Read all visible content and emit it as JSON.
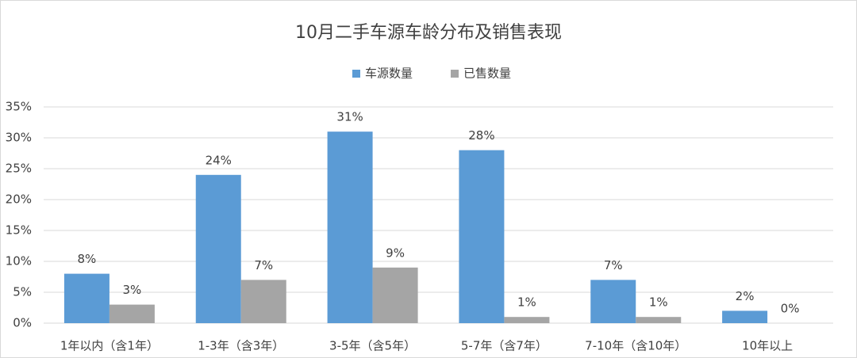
{
  "chart_data": {
    "type": "bar",
    "title": "10月二手车源车龄分布及销售表现",
    "categories": [
      "1年以内（含1年）",
      "1-3年（含3年）",
      "3-5年（含5年）",
      "5-7年（含7年）",
      "7-10年（含10年）",
      "10年以上"
    ],
    "series": [
      {
        "name": "车源数量",
        "color": "#5b9bd5",
        "values": [
          8,
          24,
          31,
          28,
          7,
          2
        ],
        "value_labels": [
          "8%",
          "24%",
          "31%",
          "28%",
          "7%",
          "2%"
        ]
      },
      {
        "name": "已售数量",
        "color": "#a5a5a5",
        "values": [
          3,
          7,
          9,
          1,
          1,
          0
        ],
        "value_labels": [
          "3%",
          "7%",
          "9%",
          "1%",
          "1%",
          "0%"
        ]
      }
    ],
    "ylim": [
      0,
      35
    ],
    "yticks": [
      {
        "value": 0,
        "label": "0%"
      },
      {
        "value": 5,
        "label": "5%"
      },
      {
        "value": 10,
        "label": "10%"
      },
      {
        "value": 15,
        "label": "15%"
      },
      {
        "value": 20,
        "label": "20%"
      },
      {
        "value": 25,
        "label": "25%"
      },
      {
        "value": 30,
        "label": "30%"
      },
      {
        "value": 35,
        "label": "35%"
      }
    ],
    "grid": true,
    "legend": "top"
  }
}
